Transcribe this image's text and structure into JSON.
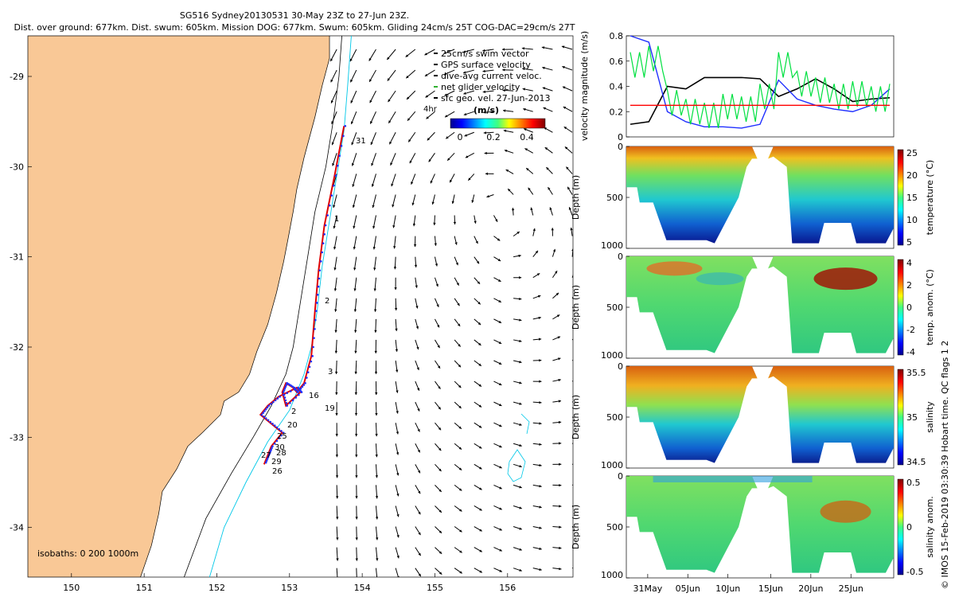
{
  "header": {
    "title_line1": "SG516 Sydney20130531 30-May 23Z to 27-Jun 23Z.",
    "title_line2": "Dist. over ground: 677km. Dist. swum: 605km. Mission DOG: 677km. Swum: 605km. Gliding 24cm/s 25T COG-DAC=29cm/s 27T"
  },
  "map": {
    "legend": [
      "25cm/s swim vector",
      "GPS surface velocity",
      "dive-avg current veloc.",
      "net glider velocity",
      "sfc geo. vel. 27-Jun-2013"
    ],
    "colorbar_label": "(m/s)",
    "colorbar_ticks": [
      "0",
      "0.2",
      "0.4"
    ],
    "isobaths_label": "isobaths: 0   200  1000m",
    "x_ticks": [
      "150",
      "151",
      "152",
      "153",
      "154",
      "155",
      "156"
    ],
    "y_ticks": [
      "-29",
      "-30",
      "-31",
      "-32",
      "-33",
      "-34"
    ],
    "day_labels": [
      "31",
      "1",
      "2",
      "3",
      "16",
      "19",
      "2",
      "20",
      "25",
      "30",
      "28",
      "29",
      "26",
      "27"
    ],
    "hr_label": "4hr",
    "colors": {
      "land": "#f9c896",
      "coast": "#000000",
      "isobath200": "#000000",
      "isobath1000": "#00c8e8",
      "track": "#e00000",
      "track_dots": "#2030ff"
    }
  },
  "velocity_panel": {
    "ylabel": "velocity magnitude (m/s)",
    "y_ticks": [
      "0",
      "0.2",
      "0.4",
      "0.6",
      "0.8"
    ]
  },
  "depth_panels": [
    {
      "name": "temperature",
      "ylabel": "Depth (m)",
      "cbar_label": "temperature (°C)",
      "cbar_ticks": [
        "25",
        "20",
        "15",
        "10",
        "5"
      ]
    },
    {
      "name": "temp-anomaly",
      "ylabel": "Depth (m)",
      "cbar_label": "temp. anom. (°C)",
      "cbar_ticks": [
        "4",
        "2",
        "0",
        "-2",
        "-4"
      ]
    },
    {
      "name": "salinity",
      "ylabel": "Depth (m)",
      "cbar_label": "salinity",
      "cbar_ticks": [
        "35.5",
        "35",
        "34.5"
      ]
    },
    {
      "name": "salinity-anomaly",
      "ylabel": "Depth (m)",
      "cbar_label": "salinity anom.",
      "cbar_ticks": [
        "0.5",
        "0",
        "-0.5"
      ]
    }
  ],
  "depth_ticks": [
    "0",
    "500",
    "1000"
  ],
  "time_ticks": [
    "31May",
    "05Jun",
    "10Jun",
    "15Jun",
    "20Jun",
    "25Jun"
  ],
  "footer": "© IMOS 15-Feb-2019 03:30:39 Hobart time. QC flags 1  2",
  "chart_data": [
    {
      "type": "scatter",
      "title": "SG516 Sydney20130531 30-May 23Z to 27-Jun 23Z.",
      "xlabel": "",
      "ylabel": "",
      "xlim": [
        149.4,
        156.9
      ],
      "ylim": [
        -34.55,
        -28.55
      ],
      "series": [
        {
          "name": "net glider velocity",
          "x": [
            153.75,
            153.62,
            153.48,
            153.4,
            153.35,
            153.3,
            153.2,
            153.1,
            153.05,
            152.95,
            152.9,
            152.95,
            153.15,
            153.1,
            152.85,
            152.7,
            152.6,
            152.75,
            152.9,
            152.75,
            152.7,
            152.65
          ],
          "y": [
            -29.55,
            -30.1,
            -30.65,
            -31.15,
            -31.6,
            -32.1,
            -32.4,
            -32.5,
            -32.45,
            -32.4,
            -32.5,
            -32.65,
            -32.5,
            -32.45,
            -32.55,
            -32.65,
            -32.75,
            -32.85,
            -32.95,
            -33.1,
            -33.2,
            -33.3
          ]
        }
      ]
    },
    {
      "type": "line",
      "ylabel": "velocity magnitude (m/s)",
      "ylim": [
        0,
        0.8
      ],
      "x": [
        "30May",
        "01Jun",
        "03Jun",
        "05Jun",
        "07Jun",
        "09Jun",
        "11Jun",
        "13Jun",
        "15Jun",
        "17Jun",
        "19Jun",
        "21Jun",
        "23Jun",
        "25Jun",
        "27Jun"
      ],
      "series": [
        {
          "name": "net glider velocity",
          "values": [
            0.1,
            0.12,
            0.4,
            0.38,
            0.47,
            0.47,
            0.47,
            0.46,
            0.32,
            0.38,
            0.46,
            0.38,
            0.28,
            0.3,
            0.31
          ]
        },
        {
          "name": "dive-avg current veloc.",
          "values": [
            0.8,
            0.75,
            0.2,
            0.12,
            0.08,
            0.08,
            0.07,
            0.1,
            0.45,
            0.3,
            0.25,
            0.22,
            0.2,
            0.25,
            0.38
          ]
        },
        {
          "name": "GPS surface velocity",
          "values": [
            0.55,
            0.6,
            0.25,
            0.18,
            0.15,
            0.22,
            0.2,
            0.3,
            0.55,
            0.4,
            0.35,
            0.3,
            0.32,
            0.28,
            0.3
          ]
        },
        {
          "name": "25cm/s swim vector",
          "values": [
            0.25,
            0.25,
            0.25,
            0.25,
            0.25,
            0.25,
            0.25,
            0.25,
            0.25,
            0.25,
            0.25,
            0.25,
            0.25,
            0.25,
            0.25
          ]
        }
      ]
    }
  ]
}
